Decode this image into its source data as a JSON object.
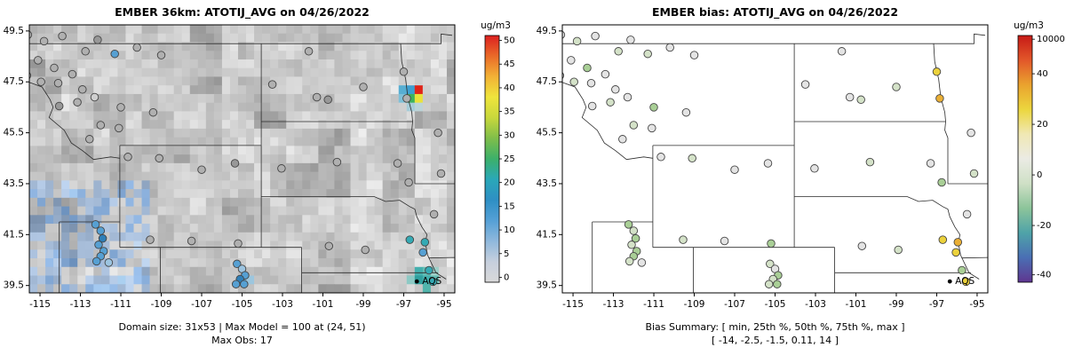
{
  "chart_data": [
    {
      "type": "scatter",
      "title": "EMBER 36km: ATOTIJ_AVG on 04/26/2022",
      "captions": [
        "Domain size: 31x53 | Max Model = 100 at (24, 51)",
        "Max Obs: 17"
      ],
      "xlim": [
        -115.53,
        -94.47
      ],
      "ylim": [
        39.21,
        49.74
      ],
      "x_ticks": [
        -115,
        -113,
        -111,
        -109,
        -107,
        -105,
        -103,
        -101,
        -99,
        -97,
        -95
      ],
      "y_ticks": [
        39.5,
        41.5,
        43.5,
        45.5,
        47.5,
        49.5
      ],
      "legend": {
        "label": "AQS",
        "lon": -96.35,
        "lat": 39.66
      },
      "colorbar": {
        "title": "ug/m3",
        "colors": [
          "#d9d9d9",
          "#c6cfdd",
          "#8fb8dc",
          "#55a0d6",
          "#2e8fc4",
          "#2aa8b8",
          "#3cb06a",
          "#7fbe4a",
          "#c8d83c",
          "#efe53c",
          "#f2b236",
          "#ea6a28",
          "#dc2020"
        ],
        "ticks": [
          {
            "label": "0",
            "f": 0.02
          },
          {
            "label": "5",
            "f": 0.116
          },
          {
            "label": "10",
            "f": 0.212
          },
          {
            "label": "15",
            "f": 0.308
          },
          {
            "label": "20",
            "f": 0.404
          },
          {
            "label": "25",
            "f": 0.5
          },
          {
            "label": "30",
            "f": 0.596
          },
          {
            "label": "35",
            "f": 0.692
          },
          {
            "label": "40",
            "f": 0.788
          },
          {
            "label": "45",
            "f": 0.884
          },
          {
            "label": "50",
            "f": 0.98
          }
        ]
      },
      "raster": {
        "nx": 53,
        "ny": 31,
        "max_model": 100,
        "max_model_cell": [
          24,
          51
        ],
        "max_obs": 17,
        "cells": [
          [
            -97.0,
            47.3,
            "#57aed2"
          ],
          [
            -96.6,
            47.3,
            "#3f9fd0"
          ],
          [
            -96.25,
            47.3,
            "#e02418"
          ],
          [
            -96.6,
            46.95,
            "#3db35c"
          ],
          [
            -96.25,
            46.95,
            "#e9e23b"
          ],
          [
            -97.0,
            46.95,
            "#7fc0d8"
          ],
          [
            -96.6,
            46.6,
            "#a6ccd8"
          ],
          [
            -96.25,
            46.6,
            "#bcd4d8"
          ],
          [
            -96.2,
            40.05,
            "#44b0ae"
          ],
          [
            -95.8,
            40.05,
            "#63bdb4"
          ],
          [
            -96.2,
            39.7,
            "#2fa09e"
          ],
          [
            -95.8,
            39.7,
            "#44b0ae"
          ],
          [
            -95.45,
            39.7,
            "#63bdb4"
          ],
          [
            -95.8,
            39.35,
            "#52b5ac"
          ],
          [
            -96.55,
            39.7,
            "#8cc9c4"
          ],
          [
            -95.45,
            40.05,
            "#9ed0c9"
          ],
          [
            -105.0,
            39.6,
            "#7fb6d8"
          ],
          [
            -104.6,
            39.6,
            "#9cc6de"
          ]
        ]
      },
      "palette": {
        "g": "#b0b0b0",
        "g2": "#989898",
        "lg": "#cfcfcf",
        "b": "#56a0d3",
        "db": "#2f7fb8",
        "t": "#35aab4",
        "lb": "#9cc4e0"
      },
      "points": [
        [
          -115.6,
          49.35,
          "g"
        ],
        [
          -114.8,
          49.1,
          "g"
        ],
        [
          -115.85,
          48.6,
          "g"
        ],
        [
          -115.1,
          48.35,
          "g"
        ],
        [
          -114.3,
          48.05,
          "g"
        ],
        [
          -115.65,
          47.75,
          "g"
        ],
        [
          -114.95,
          47.5,
          "g"
        ],
        [
          -114.1,
          47.45,
          "g"
        ],
        [
          -113.4,
          47.8,
          "g"
        ],
        [
          -112.75,
          48.7,
          "g"
        ],
        [
          -113.9,
          49.3,
          "g"
        ],
        [
          -112.15,
          49.15,
          "g2"
        ],
        [
          -111.3,
          48.6,
          "b"
        ],
        [
          -110.2,
          48.85,
          "g"
        ],
        [
          -109.0,
          48.55,
          "g"
        ],
        [
          -112.9,
          47.2,
          "g"
        ],
        [
          -113.15,
          46.7,
          "g"
        ],
        [
          -114.05,
          46.55,
          "g2"
        ],
        [
          -112.3,
          46.9,
          "lg"
        ],
        [
          -111.0,
          46.5,
          "g"
        ],
        [
          -109.4,
          46.3,
          "g"
        ],
        [
          -112.0,
          45.8,
          "g"
        ],
        [
          -112.55,
          45.25,
          "g"
        ],
        [
          -111.1,
          45.68,
          "g"
        ],
        [
          -116.05,
          46.4,
          "g"
        ],
        [
          -115.85,
          44.3,
          "g"
        ],
        [
          -115.95,
          43.55,
          "g"
        ],
        [
          -110.65,
          44.55,
          "g"
        ],
        [
          -109.1,
          44.5,
          "g"
        ],
        [
          -107.0,
          44.05,
          "g"
        ],
        [
          -105.35,
          44.3,
          "g2"
        ],
        [
          -109.55,
          41.3,
          "g"
        ],
        [
          -107.5,
          41.25,
          "g"
        ],
        [
          -105.2,
          41.15,
          "g"
        ],
        [
          -112.25,
          41.9,
          "b"
        ],
        [
          -112.0,
          41.65,
          "b"
        ],
        [
          -111.9,
          41.35,
          "db"
        ],
        [
          -112.1,
          41.1,
          "b"
        ],
        [
          -111.85,
          40.85,
          "b"
        ],
        [
          -112.0,
          40.65,
          "b"
        ],
        [
          -112.2,
          40.45,
          "b"
        ],
        [
          -111.6,
          40.4,
          "lb"
        ],
        [
          -105.25,
          40.35,
          "b"
        ],
        [
          -105.0,
          40.15,
          "lb"
        ],
        [
          -104.85,
          39.9,
          "b"
        ],
        [
          -105.1,
          39.75,
          "db"
        ],
        [
          -104.9,
          39.55,
          "b"
        ],
        [
          -105.3,
          39.55,
          "b"
        ],
        [
          -103.5,
          47.4,
          "g"
        ],
        [
          -101.3,
          46.9,
          "g"
        ],
        [
          -100.75,
          46.8,
          "g2"
        ],
        [
          -97.0,
          47.9,
          "g"
        ],
        [
          -96.85,
          46.85,
          "g"
        ],
        [
          -103.05,
          44.1,
          "g"
        ],
        [
          -100.3,
          44.35,
          "g"
        ],
        [
          -96.75,
          43.55,
          "g"
        ],
        [
          -100.7,
          41.05,
          "g"
        ],
        [
          -98.9,
          40.9,
          "g"
        ],
        [
          -96.7,
          41.3,
          "t"
        ],
        [
          -95.95,
          41.2,
          "t"
        ],
        [
          -96.05,
          40.8,
          "b"
        ],
        [
          -95.75,
          40.1,
          "t"
        ],
        [
          -95.55,
          39.65,
          "t"
        ],
        [
          -95.3,
          45.5,
          "g"
        ],
        [
          -95.15,
          43.9,
          "g"
        ],
        [
          -95.5,
          42.3,
          "g"
        ],
        [
          -101.7,
          48.7,
          "g"
        ],
        [
          -99.0,
          47.3,
          "g"
        ],
        [
          -97.3,
          44.3,
          "g"
        ]
      ]
    },
    {
      "type": "scatter",
      "title": "EMBER bias: ATOTIJ_AVG on 04/26/2022",
      "captions": [
        "Bias Summary: [ min, 25th %, 50th %, 75th %, max ]",
        "[ -14,  -2.5,  -1.5,  0.11,  14 ]"
      ],
      "bias_summary": {
        "min": -14,
        "p25": -2.5,
        "p50": -1.5,
        "p75": 0.11,
        "max": 14
      },
      "xlim": [
        -115.53,
        -94.47
      ],
      "ylim": [
        39.21,
        49.74
      ],
      "x_ticks": [
        -115,
        -113,
        -111,
        -109,
        -107,
        -105,
        -103,
        -101,
        -99,
        -97,
        -95
      ],
      "y_ticks": [
        39.5,
        41.5,
        43.5,
        45.5,
        47.5,
        49.5
      ],
      "legend": {
        "label": "AQS",
        "lon": -96.35,
        "lat": 39.66
      },
      "colorbar": {
        "title": "ug/m3",
        "colors": [
          "#5f3690",
          "#4a6fb4",
          "#4fa3a8",
          "#8cc49a",
          "#cfe0c6",
          "#ebebe4",
          "#f0e8b4",
          "#ecd63e",
          "#eaa32e",
          "#e2572a",
          "#c61a16"
        ],
        "ticks": [
          {
            "label": "10000",
            "f": 0.985
          },
          {
            "label": "40",
            "f": 0.845
          },
          {
            "label": "20",
            "f": 0.64
          },
          {
            "label": "0",
            "f": 0.435
          },
          {
            "label": "-20",
            "f": 0.23
          },
          {
            "label": "-40",
            "f": 0.03
          }
        ]
      },
      "palette": {
        "p": "#e4e4e4",
        "pg": "#d4e2c8",
        "g": "#a9cf96",
        "y": "#ecd23c",
        "o": "#eaaf35"
      },
      "points": [
        [
          -115.6,
          49.35,
          "p"
        ],
        [
          -114.8,
          49.1,
          "pg"
        ],
        [
          -115.85,
          48.6,
          "p"
        ],
        [
          -115.1,
          48.35,
          "p"
        ],
        [
          -114.3,
          48.05,
          "g"
        ],
        [
          -115.65,
          47.75,
          "p"
        ],
        [
          -114.95,
          47.5,
          "pg"
        ],
        [
          -114.1,
          47.45,
          "p"
        ],
        [
          -113.4,
          47.8,
          "p"
        ],
        [
          -112.75,
          48.7,
          "pg"
        ],
        [
          -113.9,
          49.3,
          "p"
        ],
        [
          -112.15,
          49.15,
          "p"
        ],
        [
          -111.3,
          48.6,
          "pg"
        ],
        [
          -110.2,
          48.85,
          "p"
        ],
        [
          -109.0,
          48.55,
          "p"
        ],
        [
          -112.9,
          47.2,
          "p"
        ],
        [
          -113.15,
          46.7,
          "pg"
        ],
        [
          -114.05,
          46.55,
          "p"
        ],
        [
          -112.3,
          46.9,
          "p"
        ],
        [
          -111.0,
          46.5,
          "g"
        ],
        [
          -109.4,
          46.3,
          "p"
        ],
        [
          -112.0,
          45.8,
          "pg"
        ],
        [
          -112.55,
          45.25,
          "p"
        ],
        [
          -111.1,
          45.68,
          "p"
        ],
        [
          -116.05,
          46.4,
          "p"
        ],
        [
          -115.85,
          44.3,
          "pg"
        ],
        [
          -115.95,
          43.55,
          "p"
        ],
        [
          -110.65,
          44.55,
          "p"
        ],
        [
          -109.1,
          44.5,
          "pg"
        ],
        [
          -107.0,
          44.05,
          "p"
        ],
        [
          -105.35,
          44.3,
          "p"
        ],
        [
          -109.55,
          41.3,
          "pg"
        ],
        [
          -107.5,
          41.25,
          "p"
        ],
        [
          -105.2,
          41.15,
          "g"
        ],
        [
          -112.25,
          41.9,
          "g"
        ],
        [
          -112.0,
          41.65,
          "pg"
        ],
        [
          -111.9,
          41.35,
          "g"
        ],
        [
          -112.1,
          41.1,
          "pg"
        ],
        [
          -111.85,
          40.85,
          "g"
        ],
        [
          -112.0,
          40.65,
          "g"
        ],
        [
          -112.2,
          40.45,
          "pg"
        ],
        [
          -111.6,
          40.4,
          "p"
        ],
        [
          -105.25,
          40.35,
          "pg"
        ],
        [
          -105.0,
          40.15,
          "p"
        ],
        [
          -104.85,
          39.9,
          "g"
        ],
        [
          -105.1,
          39.75,
          "pg"
        ],
        [
          -104.9,
          39.55,
          "g"
        ],
        [
          -105.3,
          39.55,
          "pg"
        ],
        [
          -103.5,
          47.4,
          "p"
        ],
        [
          -101.3,
          46.9,
          "p"
        ],
        [
          -100.75,
          46.8,
          "pg"
        ],
        [
          -97.0,
          47.9,
          "y"
        ],
        [
          -96.85,
          46.85,
          "o"
        ],
        [
          -103.05,
          44.1,
          "p"
        ],
        [
          -100.3,
          44.35,
          "pg"
        ],
        [
          -96.75,
          43.55,
          "g"
        ],
        [
          -100.7,
          41.05,
          "p"
        ],
        [
          -98.9,
          40.9,
          "pg"
        ],
        [
          -96.7,
          41.3,
          "y"
        ],
        [
          -95.95,
          41.2,
          "o"
        ],
        [
          -96.05,
          40.8,
          "y"
        ],
        [
          -95.75,
          40.1,
          "g"
        ],
        [
          -95.55,
          39.65,
          "y"
        ],
        [
          -95.3,
          45.5,
          "p"
        ],
        [
          -95.15,
          43.9,
          "pg"
        ],
        [
          -95.5,
          42.3,
          "p"
        ],
        [
          -101.7,
          48.7,
          "p"
        ],
        [
          -99.0,
          47.3,
          "pg"
        ],
        [
          -97.3,
          44.3,
          "p"
        ]
      ]
    }
  ]
}
